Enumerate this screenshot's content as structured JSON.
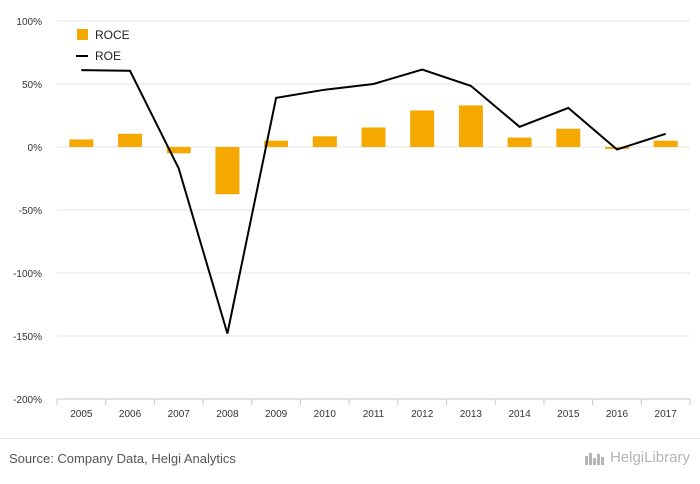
{
  "chart_data": {
    "type": "bar",
    "categories": [
      "2005",
      "2006",
      "2007",
      "2008",
      "2009",
      "2010",
      "2011",
      "2012",
      "2013",
      "2014",
      "2015",
      "2016",
      "2017"
    ],
    "series": [
      {
        "name": "ROCE",
        "kind": "bar",
        "color": "#f5a800",
        "values": [
          6,
          10.5,
          -5,
          -37.5,
          5,
          8.5,
          15.5,
          29,
          33,
          7.5,
          14.5,
          -1.5,
          5
        ]
      },
      {
        "name": "ROE",
        "kind": "line",
        "color": "#000000",
        "values": [
          61,
          60.5,
          -17,
          -148,
          39,
          45.5,
          50,
          61.5,
          48.5,
          16,
          31,
          -2,
          10.5
        ]
      }
    ],
    "yticks": [
      "100%",
      "50%",
      "0%",
      "-50%",
      "-100%",
      "-150%",
      "-200%"
    ],
    "ylim": [
      -200,
      100
    ],
    "legend_position": "top-left",
    "grid": true
  },
  "footer": {
    "source": "Source: Company Data, Helgi Analytics",
    "brand": "HelgiLibrary"
  }
}
